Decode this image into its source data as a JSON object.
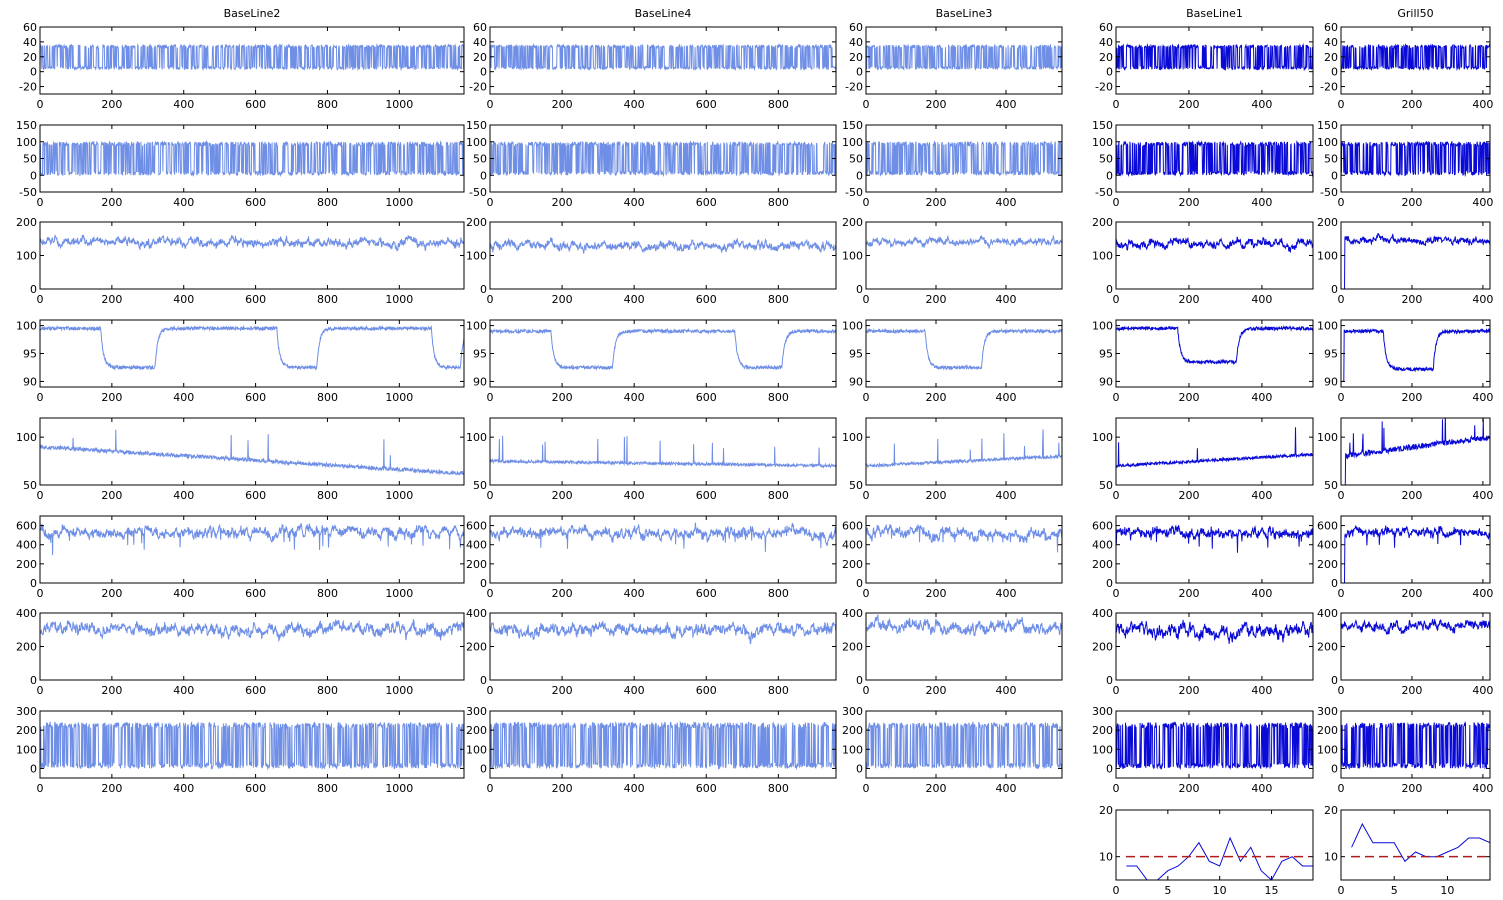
{
  "figure": {
    "line_colors": {
      "light": "#6f8fe6",
      "dark": "#0a0ad6",
      "threshold": "#b01c1c"
    }
  },
  "chart_data": [
    {
      "type": "line",
      "title": "BaseLine2",
      "rows": [
        {
          "ylim": [
            -30,
            60
          ],
          "yticks": [
            -20,
            0,
            20,
            40,
            60
          ],
          "level": 20,
          "amp": 14,
          "noise": "square",
          "low": 3,
          "high": 36
        },
        {
          "ylim": [
            -50,
            150
          ],
          "yticks": [
            -50,
            0,
            50,
            100,
            150
          ],
          "noise": "square",
          "low": 0,
          "high": 100
        },
        {
          "ylim": [
            0,
            200
          ],
          "yticks": [
            0,
            100,
            200
          ],
          "level": 140,
          "amp": 14,
          "noise": "jitter"
        },
        {
          "ylim": [
            89,
            101
          ],
          "yticks": [
            90,
            95,
            100
          ],
          "noise": "dips",
          "base": 99.5,
          "dip": 92.5,
          "dips": [
            [
              170,
              320
            ],
            [
              660,
              770
            ],
            [
              1090,
              1170
            ]
          ]
        },
        {
          "ylim": [
            50,
            120
          ],
          "yticks": [
            50,
            100
          ],
          "level": 80,
          "amp": 4,
          "noise": "spikes",
          "start": 90,
          "end": 62
        },
        {
          "ylim": [
            0,
            700
          ],
          "yticks": [
            0,
            200,
            400,
            600
          ],
          "level": 530,
          "amp": 60,
          "noise": "jitter-down"
        },
        {
          "ylim": [
            0,
            400
          ],
          "yticks": [
            0,
            200,
            400
          ],
          "level": 300,
          "amp": 40,
          "noise": "jitter"
        },
        {
          "ylim": [
            -50,
            300
          ],
          "yticks": [
            0,
            100,
            200,
            300
          ],
          "noise": "square",
          "low": 0,
          "high": 240
        }
      ],
      "xlim": [
        0,
        1180
      ],
      "xticks": [
        0,
        200,
        400,
        600,
        800,
        1000
      ],
      "color": "light"
    },
    {
      "type": "line",
      "title": "BaseLine4",
      "rows": [
        {
          "ylim": [
            -30,
            60
          ],
          "yticks": [
            -20,
            0,
            20,
            40,
            60
          ],
          "noise": "square",
          "low": 3,
          "high": 36
        },
        {
          "ylim": [
            -50,
            150
          ],
          "yticks": [
            -50,
            0,
            50,
            100,
            150
          ],
          "noise": "square",
          "low": 0,
          "high": 100
        },
        {
          "ylim": [
            0,
            200
          ],
          "yticks": [
            0,
            100,
            200
          ],
          "level": 130,
          "amp": 14,
          "noise": "jitter"
        },
        {
          "ylim": [
            89,
            101
          ],
          "yticks": [
            90,
            95,
            100
          ],
          "noise": "dips",
          "base": 99,
          "dip": 92.5,
          "dips": [
            [
              170,
              340
            ],
            [
              680,
              810
            ]
          ]
        },
        {
          "ylim": [
            50,
            120
          ],
          "yticks": [
            50,
            100
          ],
          "level": 70,
          "amp": 3,
          "noise": "spikes",
          "start": 75,
          "end": 70
        },
        {
          "ylim": [
            0,
            700
          ],
          "yticks": [
            0,
            200,
            400,
            600
          ],
          "level": 520,
          "amp": 60,
          "noise": "jitter-down"
        },
        {
          "ylim": [
            0,
            400
          ],
          "yticks": [
            0,
            200,
            400
          ],
          "level": 300,
          "amp": 40,
          "noise": "jitter"
        },
        {
          "ylim": [
            -50,
            300
          ],
          "yticks": [
            0,
            100,
            200,
            300
          ],
          "noise": "square",
          "low": 0,
          "high": 240
        }
      ],
      "xlim": [
        0,
        960
      ],
      "xticks": [
        0,
        200,
        400,
        600,
        800
      ],
      "color": "light"
    },
    {
      "type": "line",
      "title": "BaseLine3",
      "rows": [
        {
          "ylim": [
            -30,
            60
          ],
          "yticks": [
            -20,
            0,
            20,
            40,
            60
          ],
          "noise": "square",
          "low": 3,
          "high": 36
        },
        {
          "ylim": [
            -50,
            150
          ],
          "yticks": [
            -50,
            0,
            50,
            100,
            150
          ],
          "noise": "square",
          "low": 0,
          "high": 100
        },
        {
          "ylim": [
            0,
            200
          ],
          "yticks": [
            0,
            100,
            200
          ],
          "level": 140,
          "amp": 12,
          "noise": "jitter"
        },
        {
          "ylim": [
            89,
            101
          ],
          "yticks": [
            90,
            95,
            100
          ],
          "noise": "dips",
          "base": 99,
          "dip": 92.5,
          "dips": [
            [
              170,
              330
            ]
          ]
        },
        {
          "ylim": [
            50,
            120
          ],
          "yticks": [
            50,
            100
          ],
          "level": 70,
          "amp": 3,
          "noise": "spikes",
          "start": 70,
          "end": 80
        },
        {
          "ylim": [
            0,
            700
          ],
          "yticks": [
            0,
            200,
            400,
            600
          ],
          "level": 520,
          "amp": 60,
          "noise": "jitter-down"
        },
        {
          "ylim": [
            0,
            400
          ],
          "yticks": [
            0,
            200,
            400
          ],
          "level": 310,
          "amp": 40,
          "noise": "jitter"
        },
        {
          "ylim": [
            -50,
            300
          ],
          "yticks": [
            0,
            100,
            200,
            300
          ],
          "noise": "square",
          "low": 0,
          "high": 240
        }
      ],
      "xlim": [
        0,
        560
      ],
      "xticks": [
        0,
        200,
        400
      ],
      "color": "light"
    },
    {
      "type": "line",
      "title": "BaseLine1",
      "rows": [
        {
          "ylim": [
            -30,
            60
          ],
          "yticks": [
            -20,
            0,
            20,
            40,
            60
          ],
          "noise": "square",
          "low": 3,
          "high": 36
        },
        {
          "ylim": [
            -50,
            150
          ],
          "yticks": [
            -50,
            0,
            50,
            100,
            150
          ],
          "noise": "square",
          "low": 0,
          "high": 100
        },
        {
          "ylim": [
            0,
            200
          ],
          "yticks": [
            0,
            100,
            200
          ],
          "level": 135,
          "amp": 14,
          "noise": "jitter"
        },
        {
          "ylim": [
            89,
            101
          ],
          "yticks": [
            90,
            95,
            100
          ],
          "noise": "dips",
          "base": 99.5,
          "dip": 93.5,
          "dips": [
            [
              170,
              330
            ]
          ]
        },
        {
          "ylim": [
            50,
            120
          ],
          "yticks": [
            50,
            100
          ],
          "level": 70,
          "amp": 3,
          "noise": "spikes",
          "start": 70,
          "end": 82
        },
        {
          "ylim": [
            0,
            700
          ],
          "yticks": [
            0,
            200,
            400,
            600
          ],
          "level": 520,
          "amp": 60,
          "noise": "jitter-down"
        },
        {
          "ylim": [
            0,
            400
          ],
          "yticks": [
            0,
            200,
            400
          ],
          "level": 290,
          "amp": 45,
          "noise": "jitter"
        },
        {
          "ylim": [
            -50,
            300
          ],
          "yticks": [
            0,
            100,
            200,
            300
          ],
          "noise": "square",
          "low": 0,
          "high": 240
        }
      ],
      "xlim": [
        0,
        540
      ],
      "xticks": [
        0,
        200,
        400
      ],
      "color": "dark",
      "extra": {
        "xlim": [
          0,
          19
        ],
        "xticks": [
          0,
          5,
          10,
          15
        ],
        "ylim": [
          5,
          20
        ],
        "yticks": [
          10,
          20
        ],
        "threshold": 10,
        "x": [
          1,
          2,
          3,
          4,
          5,
          6,
          7,
          8,
          9,
          10,
          11,
          12,
          13,
          14,
          15,
          16,
          17,
          18,
          19
        ],
        "y": [
          8,
          8,
          5,
          5,
          7,
          8,
          10,
          13,
          9,
          8,
          14,
          9,
          12,
          7,
          5,
          9,
          10,
          8,
          8
        ]
      }
    },
    {
      "type": "line",
      "title": "Grill50",
      "rows": [
        {
          "ylim": [
            -30,
            60
          ],
          "yticks": [
            -20,
            0,
            20,
            40,
            60
          ],
          "noise": "square",
          "low": 3,
          "high": 36
        },
        {
          "ylim": [
            -50,
            150
          ],
          "yticks": [
            -50,
            0,
            50,
            100,
            150
          ],
          "noise": "square",
          "low": 0,
          "high": 100
        },
        {
          "ylim": [
            0,
            200
          ],
          "yticks": [
            0,
            100,
            200
          ],
          "level": 145,
          "amp": 12,
          "noise": "jitter-start0"
        },
        {
          "ylim": [
            89,
            101
          ],
          "yticks": [
            90,
            95,
            100
          ],
          "noise": "dips",
          "base": 99,
          "dip": 92.2,
          "dips": [
            [
              120,
              260
            ]
          ],
          "start0": true
        },
        {
          "ylim": [
            50,
            120
          ],
          "yticks": [
            50,
            100
          ],
          "level": 90,
          "amp": 6,
          "noise": "spikes",
          "start": 80,
          "end": 100,
          "start0": true
        },
        {
          "ylim": [
            0,
            700
          ],
          "yticks": [
            0,
            200,
            400,
            600
          ],
          "level": 520,
          "amp": 50,
          "noise": "jitter-down",
          "start0": true
        },
        {
          "ylim": [
            0,
            400
          ],
          "yticks": [
            0,
            200,
            400
          ],
          "level": 320,
          "amp": 30,
          "noise": "jitter"
        },
        {
          "ylim": [
            -50,
            300
          ],
          "yticks": [
            0,
            100,
            200,
            300
          ],
          "noise": "square",
          "low": 0,
          "high": 240
        }
      ],
      "xlim": [
        0,
        420
      ],
      "xticks": [
        0,
        200,
        400
      ],
      "color": "dark",
      "extra": {
        "xlim": [
          0,
          14
        ],
        "xticks": [
          0,
          5,
          10
        ],
        "ylim": [
          5,
          20
        ],
        "yticks": [
          10,
          20
        ],
        "threshold": 10,
        "x": [
          1,
          2,
          3,
          4,
          5,
          6,
          7,
          8,
          9,
          10,
          11,
          12,
          13,
          14
        ],
        "y": [
          12,
          17,
          13,
          13,
          13,
          9,
          11,
          10,
          10,
          11,
          12,
          14,
          14,
          13
        ]
      }
    }
  ]
}
